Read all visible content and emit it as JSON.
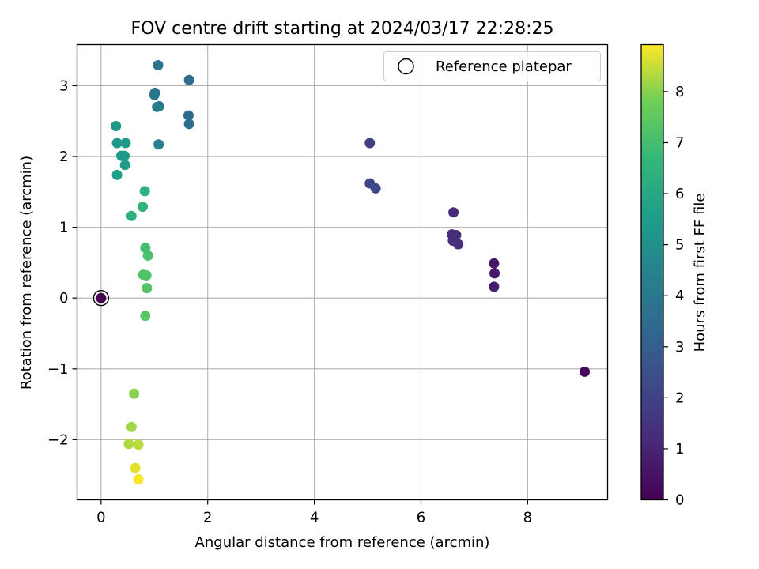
{
  "chart_data": {
    "type": "scatter",
    "title": "FOV centre drift starting at 2024/03/17 22:28:25",
    "xlabel": "Angular distance from reference (arcmin)",
    "ylabel": "Rotation from reference (arcmin)",
    "xlim": [
      -0.45,
      9.5
    ],
    "ylim": [
      -2.85,
      3.58
    ],
    "xticks": [
      0,
      2,
      4,
      6,
      8
    ],
    "yticks": [
      -2,
      -1,
      0,
      1,
      2,
      3
    ],
    "xtick_labels": [
      "0",
      "2",
      "4",
      "6",
      "8"
    ],
    "ytick_labels": [
      "−2",
      "−1",
      "0",
      "1",
      "2",
      "3"
    ],
    "grid": true,
    "legend": {
      "position": "top-right",
      "entries": [
        {
          "label": "Reference platepar",
          "marker": "open-circle"
        }
      ]
    },
    "colormap": "viridis",
    "colorbar": {
      "label": "Hours from first FF file",
      "range": [
        0,
        8.92
      ],
      "ticks": [
        0,
        1,
        2,
        3,
        4,
        5,
        6,
        7,
        8
      ],
      "tick_labels": [
        "0",
        "1",
        "2",
        "3",
        "4",
        "5",
        "6",
        "7",
        "8"
      ]
    },
    "reference_point": {
      "x": 0,
      "y": 0
    },
    "points": [
      {
        "x": 0.0,
        "y": 0.0,
        "c": 0.0
      },
      {
        "x": 9.07,
        "y": -1.04,
        "c": 0.2
      },
      {
        "x": 7.37,
        "y": 0.49,
        "c": 0.7
      },
      {
        "x": 7.38,
        "y": 0.35,
        "c": 0.75
      },
      {
        "x": 7.37,
        "y": 0.16,
        "c": 0.8
      },
      {
        "x": 6.61,
        "y": 1.21,
        "c": 1.2
      },
      {
        "x": 6.58,
        "y": 0.9,
        "c": 1.25
      },
      {
        "x": 6.66,
        "y": 0.89,
        "c": 1.3
      },
      {
        "x": 6.6,
        "y": 0.81,
        "c": 1.35
      },
      {
        "x": 6.7,
        "y": 0.76,
        "c": 1.4
      },
      {
        "x": 5.04,
        "y": 2.19,
        "c": 2.0
      },
      {
        "x": 5.04,
        "y": 1.62,
        "c": 2.1
      },
      {
        "x": 5.15,
        "y": 1.55,
        "c": 2.2
      },
      {
        "x": 1.65,
        "y": 3.08,
        "c": 3.5
      },
      {
        "x": 1.64,
        "y": 2.58,
        "c": 3.55
      },
      {
        "x": 1.65,
        "y": 2.46,
        "c": 3.6
      },
      {
        "x": 1.07,
        "y": 3.29,
        "c": 3.9
      },
      {
        "x": 1.01,
        "y": 2.9,
        "c": 4.0
      },
      {
        "x": 1.0,
        "y": 2.87,
        "c": 4.05
      },
      {
        "x": 1.05,
        "y": 2.7,
        "c": 4.1
      },
      {
        "x": 1.09,
        "y": 2.71,
        "c": 4.15
      },
      {
        "x": 1.08,
        "y": 2.17,
        "c": 4.3
      },
      {
        "x": 0.28,
        "y": 2.43,
        "c": 5.3
      },
      {
        "x": 0.3,
        "y": 2.19,
        "c": 5.35
      },
      {
        "x": 0.46,
        "y": 2.19,
        "c": 5.4
      },
      {
        "x": 0.38,
        "y": 2.01,
        "c": 5.45
      },
      {
        "x": 0.44,
        "y": 2.01,
        "c": 5.5
      },
      {
        "x": 0.45,
        "y": 1.88,
        "c": 5.55
      },
      {
        "x": 0.3,
        "y": 1.74,
        "c": 5.6
      },
      {
        "x": 0.82,
        "y": 1.51,
        "c": 6.4
      },
      {
        "x": 0.78,
        "y": 1.29,
        "c": 6.5
      },
      {
        "x": 0.57,
        "y": 1.16,
        "c": 6.3
      },
      {
        "x": 0.83,
        "y": 0.71,
        "c": 7.0
      },
      {
        "x": 0.88,
        "y": 0.6,
        "c": 7.1
      },
      {
        "x": 0.79,
        "y": 0.33,
        "c": 7.2
      },
      {
        "x": 0.85,
        "y": 0.32,
        "c": 7.25
      },
      {
        "x": 0.86,
        "y": 0.14,
        "c": 7.3
      },
      {
        "x": 0.83,
        "y": -0.25,
        "c": 7.4
      },
      {
        "x": 0.62,
        "y": -1.35,
        "c": 8.0
      },
      {
        "x": 0.57,
        "y": -1.82,
        "c": 8.2
      },
      {
        "x": 0.52,
        "y": -2.06,
        "c": 8.3
      },
      {
        "x": 0.7,
        "y": -2.07,
        "c": 8.4
      },
      {
        "x": 0.64,
        "y": -2.4,
        "c": 8.7
      },
      {
        "x": 0.7,
        "y": -2.56,
        "c": 8.9
      }
    ]
  }
}
